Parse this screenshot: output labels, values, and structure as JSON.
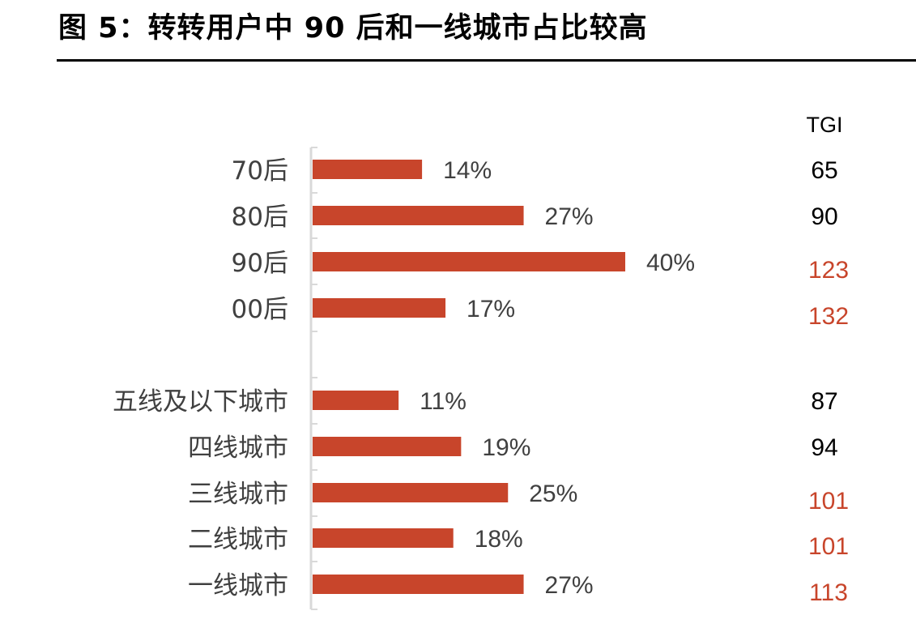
{
  "title": "图 5：转转用户中 90 后和一线城市占比较高",
  "chart_data": {
    "type": "bar",
    "orientation": "horizontal",
    "categories": [
      "70后",
      "80后",
      "90后",
      "00后",
      "五线及以下城市",
      "四线城市",
      "三线城市",
      "二线城市",
      "一线城市"
    ],
    "values": [
      14,
      27,
      40,
      17,
      11,
      19,
      25,
      18,
      27
    ],
    "value_labels": [
      "14%",
      "27%",
      "40%",
      "17%",
      "11%",
      "19%",
      "25%",
      "18%",
      "27%"
    ],
    "groups": [
      [
        "70后",
        "80后",
        "90后",
        "00后"
      ],
      [
        "五线及以下城市",
        "四线城市",
        "三线城市",
        "二线城市",
        "一线城市"
      ]
    ],
    "tgi_header": "TGI",
    "tgi": [
      "65",
      "90",
      "123",
      "132",
      "87",
      "94",
      "101",
      "101",
      "113"
    ],
    "tgi_highlight": [
      false,
      false,
      true,
      true,
      false,
      false,
      true,
      true,
      true
    ],
    "bar_color": "#c8452b",
    "tgi_color": "#000000",
    "tgi_highlight_color": "#c8452b",
    "label_color": "#404040",
    "axis_color": "#d9d9d9",
    "grid": false
  }
}
